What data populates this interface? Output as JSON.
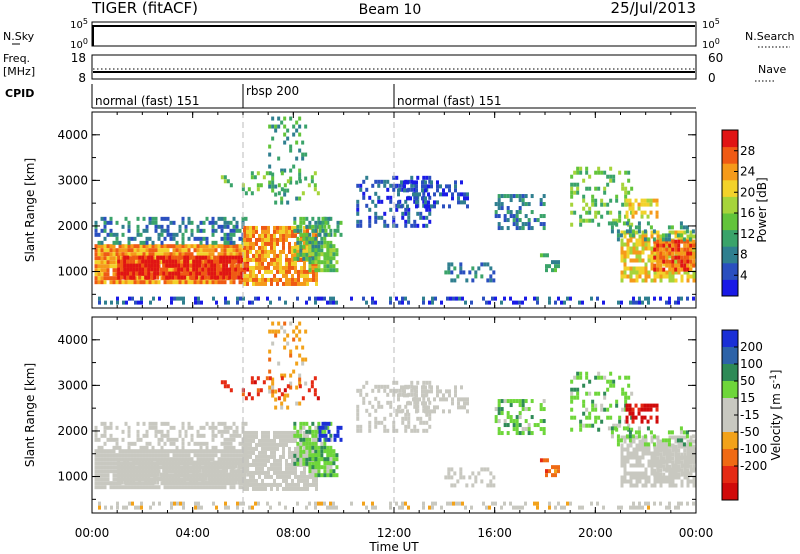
{
  "header": {
    "radar": "TIGER (fitACF)",
    "beam": "Beam 10",
    "date": "25/Jul/2013"
  },
  "top_panels": {
    "nsky": {
      "label": "N.Sky",
      "tick_hi": "10^5",
      "tick_lo": "10^0",
      "right_label": "N.Search",
      "right_hi": "10^5",
      "right_lo": "10^0"
    },
    "freq": {
      "label_line1": "Freq.",
      "label_line2": "[MHz]",
      "tick_hi": "18",
      "tick_lo": "8",
      "right_label": "Nave",
      "right_hi": "60",
      "right_lo": "0"
    },
    "cpid": {
      "label": "CPID"
    }
  },
  "modes": [
    {
      "name": "normal (fast) 151",
      "start_hour": 0,
      "end_hour": 6
    },
    {
      "name": "rbsp 200",
      "start_hour": 6,
      "end_hour": 12
    },
    {
      "name": "normal (fast) 151",
      "start_hour": 12,
      "end_hour": 24
    }
  ],
  "x_axis": {
    "title": "Time UT",
    "ticks": [
      "00:00",
      "04:00",
      "08:00",
      "12:00",
      "16:00",
      "20:00",
      "00:00"
    ],
    "range_hours": [
      0,
      24
    ]
  },
  "chart_data": [
    {
      "type": "heatmap",
      "panel": "power",
      "ylabel": "Slant Range [km]",
      "y_ticks": [
        1000,
        2000,
        3000,
        4000
      ],
      "ylim": [
        200,
        4500
      ],
      "colorbar": {
        "label": "Power [dB]",
        "ticks": [
          "4",
          "8",
          "12",
          "16",
          "20",
          "24",
          "28"
        ],
        "range": [
          0,
          32
        ],
        "colors": [
          "#1a1ae6",
          "#2a4fbf",
          "#2f7f8f",
          "#3aa36a",
          "#62c43a",
          "#a6d43a",
          "#f2d22a",
          "#f59a1a",
          "#ef5a14",
          "#e01414"
        ]
      }
    },
    {
      "type": "heatmap",
      "panel": "velocity",
      "ylabel": "Slant Range [km]",
      "y_ticks": [
        1000,
        2000,
        3000,
        4000
      ],
      "ylim": [
        200,
        4500
      ],
      "colorbar": {
        "label": "Velocity [m s^-1]",
        "ticks": [
          "200",
          "100",
          "50",
          "15",
          "-15",
          "-50",
          "-100",
          "-200"
        ],
        "range": [
          -250,
          250
        ],
        "colors": [
          "#1a2fd6",
          "#2d63a8",
          "#2e8a56",
          "#6ed63a",
          "#c8c8c0",
          "#c8c8c0",
          "#f2a21a",
          "#ef6a14",
          "#e52a14",
          "#d00a0a"
        ]
      }
    }
  ]
}
